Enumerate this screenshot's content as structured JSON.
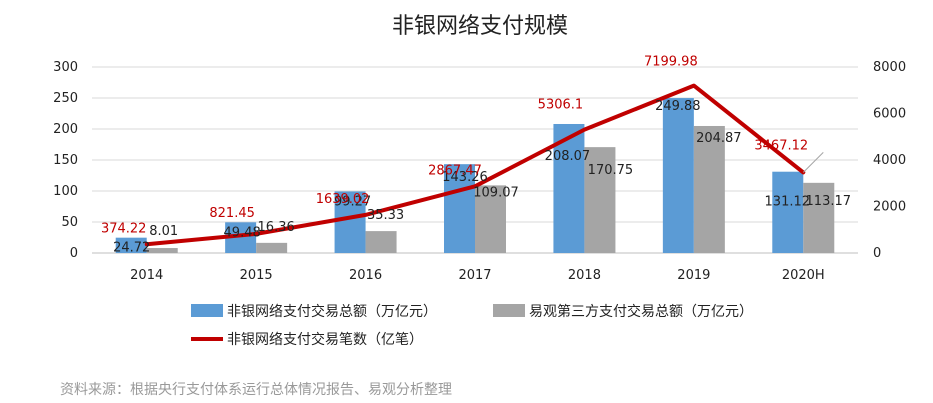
{
  "source": "资料来源：根据央行支付体系运行总体情况报告、易观分析整理",
  "colors": {
    "series1": "#5b9bd5",
    "series2": "#a5a5a5",
    "line": "#c00000"
  },
  "chart_data": {
    "type": "bar",
    "title": "非银网络支付规模",
    "categories": [
      "2014",
      "2015",
      "2016",
      "2017",
      "2018",
      "2019",
      "2020H"
    ],
    "series": [
      {
        "name": "非银网络支付交易总额（万亿元）",
        "type": "bar",
        "axis": "left",
        "values": [
          24.72,
          49.48,
          99.27,
          143.26,
          208.07,
          249.88,
          131.12
        ],
        "labels": [
          "24.72",
          "49.48",
          "99.27",
          "143.26",
          "208.07",
          "249.88",
          "131.12"
        ]
      },
      {
        "name": "易观第三方支付交易总额（万亿元）",
        "type": "bar",
        "axis": "left",
        "values": [
          8.01,
          16.36,
          35.33,
          109.07,
          170.75,
          204.87,
          113.17
        ],
        "labels": [
          "8.01",
          "16.36",
          "35.33",
          "109.07",
          "170.75",
          "204.87",
          "113.17"
        ]
      },
      {
        "name": "非银网络支付交易笔数（亿笔）",
        "type": "line",
        "axis": "right",
        "values": [
          374.22,
          821.45,
          1639.02,
          2867.47,
          5306.1,
          7199.98,
          3467.12
        ],
        "labels": [
          "374.22",
          "821.45",
          "1639.02",
          "2867.47",
          "5306.1",
          "7199.98",
          "3467.12"
        ]
      }
    ],
    "y_left": {
      "min": 0,
      "max": 300,
      "ticks": [
        "0",
        "50",
        "100",
        "150",
        "200",
        "250",
        "300"
      ]
    },
    "y_right": {
      "min": 0,
      "max": 8000,
      "ticks": [
        "0",
        "2000",
        "4000",
        "6000",
        "8000"
      ]
    },
    "grid": true,
    "legend_position": "bottom"
  }
}
